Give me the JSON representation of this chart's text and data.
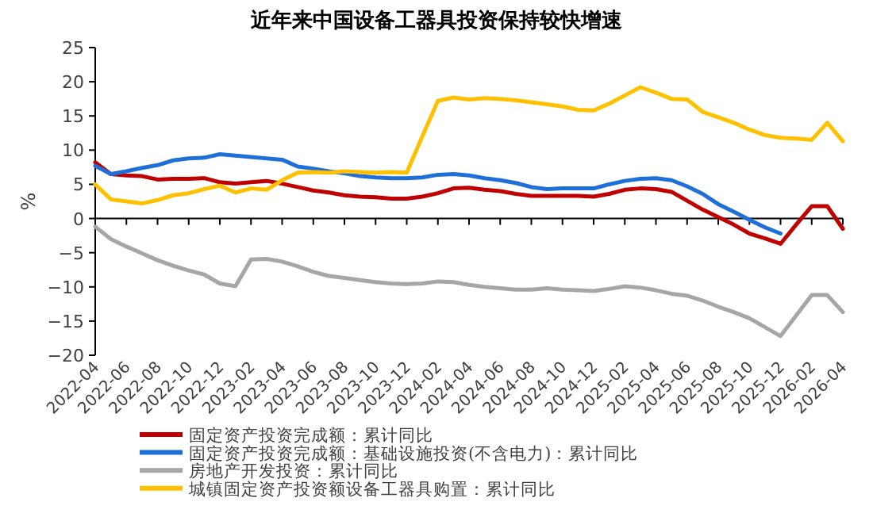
{
  "chart_data": {
    "type": "line",
    "title": "近年来中国设备工器具投资保持较快增速",
    "ylabel": "%",
    "categories": [
      "2022-04",
      null,
      "2022-06",
      null,
      "2022-08",
      null,
      "2022-10",
      null,
      "2022-12",
      null,
      "2023-02",
      null,
      "2023-04",
      null,
      "2023-06",
      null,
      "2023-08",
      null,
      "2023-10",
      null,
      "2023-12",
      null,
      "2024-02",
      null,
      "2024-04",
      null,
      "2024-06",
      null,
      "2024-08",
      null,
      "2024-10",
      null,
      "2024-12",
      null,
      "2025-02",
      null,
      "2025-04",
      null,
      "2025-06",
      null,
      "2025-08",
      null,
      "2025-10",
      null,
      "2025-12",
      null,
      "2026-02",
      null,
      "2026-04"
    ],
    "series": [
      {
        "name": "固定资产投资完成额：累计同比",
        "color": "#c00000",
        "values": [
          8.2,
          6.5,
          6.3,
          6.2,
          5.7,
          5.8,
          5.8,
          5.9,
          5.3,
          5.1,
          5.3,
          5.5,
          5.1,
          4.6,
          4.1,
          3.8,
          3.4,
          3.2,
          3.1,
          2.9,
          2.9,
          3.2,
          3.7,
          4.4,
          4.5,
          4.2,
          4.0,
          3.6,
          3.3,
          3.3,
          3.3,
          3.3,
          3.2,
          3.6,
          4.2,
          4.4,
          4.3,
          3.9,
          2.6,
          1.3,
          0.2,
          -0.9,
          -2.2,
          -2.9,
          -3.7,
          -0.9,
          1.8,
          1.8,
          -1.5
        ]
      },
      {
        "name": "固定资产投资完成额：基础设施投资(不含电力)：累计同比",
        "color": "#1f6fd8",
        "values": [
          7.7,
          6.5,
          6.9,
          7.4,
          7.8,
          8.5,
          8.8,
          8.9,
          9.4,
          9.2,
          9.0,
          8.8,
          8.6,
          7.6,
          7.3,
          6.9,
          6.6,
          6.2,
          6.0,
          5.9,
          5.9,
          6.0,
          6.4,
          6.5,
          6.3,
          5.9,
          5.6,
          5.2,
          4.6,
          4.3,
          4.4,
          4.4,
          4.4,
          5.0,
          5.5,
          5.8,
          5.9,
          5.6,
          4.7,
          3.6,
          2.1,
          1.0,
          -0.2,
          -1.3,
          -2.2,
          null,
          null,
          null,
          null
        ]
      },
      {
        "name": "房地产开发投资：累计同比",
        "color": "#a6a6a6",
        "values": [
          -1.2,
          -3.0,
          -4.1,
          -5.1,
          -6.1,
          -6.9,
          -7.6,
          -8.2,
          -9.5,
          -9.9,
          -6.0,
          -5.9,
          -6.3,
          -7.0,
          -7.8,
          -8.4,
          -8.7,
          -9.0,
          -9.3,
          -9.5,
          -9.6,
          -9.5,
          -9.2,
          -9.3,
          -9.7,
          -10.0,
          -10.2,
          -10.4,
          -10.4,
          -10.2,
          -10.4,
          -10.5,
          -10.6,
          -10.3,
          -9.9,
          -10.1,
          -10.5,
          -11.0,
          -11.3,
          -12.0,
          -12.9,
          -13.7,
          -14.6,
          -15.9,
          -17.2,
          -14.2,
          -11.2,
          -11.2,
          -13.7
        ]
      },
      {
        "name": "城镇固定资产投资额设备工器具购置：累计同比",
        "color": "#ffc000",
        "values": [
          5.0,
          2.8,
          2.5,
          2.2,
          2.7,
          3.4,
          3.7,
          4.3,
          4.8,
          3.8,
          4.4,
          4.2,
          5.6,
          6.7,
          6.8,
          6.7,
          6.9,
          6.8,
          6.7,
          6.8,
          6.7,
          12.0,
          17.2,
          17.7,
          17.4,
          17.6,
          17.5,
          17.3,
          17.0,
          16.7,
          16.4,
          15.9,
          15.8,
          16.8,
          18.0,
          19.2,
          18.4,
          17.5,
          17.4,
          15.6,
          14.8,
          14.0,
          13.0,
          12.2,
          11.8,
          11.7,
          11.5,
          14.0,
          11.3
        ]
      }
    ],
    "ylim": [
      -20,
      25
    ],
    "yticks": [
      -20,
      -15,
      -10,
      -5,
      0,
      5,
      10,
      15,
      20,
      25
    ],
    "legend": "bottom"
  }
}
